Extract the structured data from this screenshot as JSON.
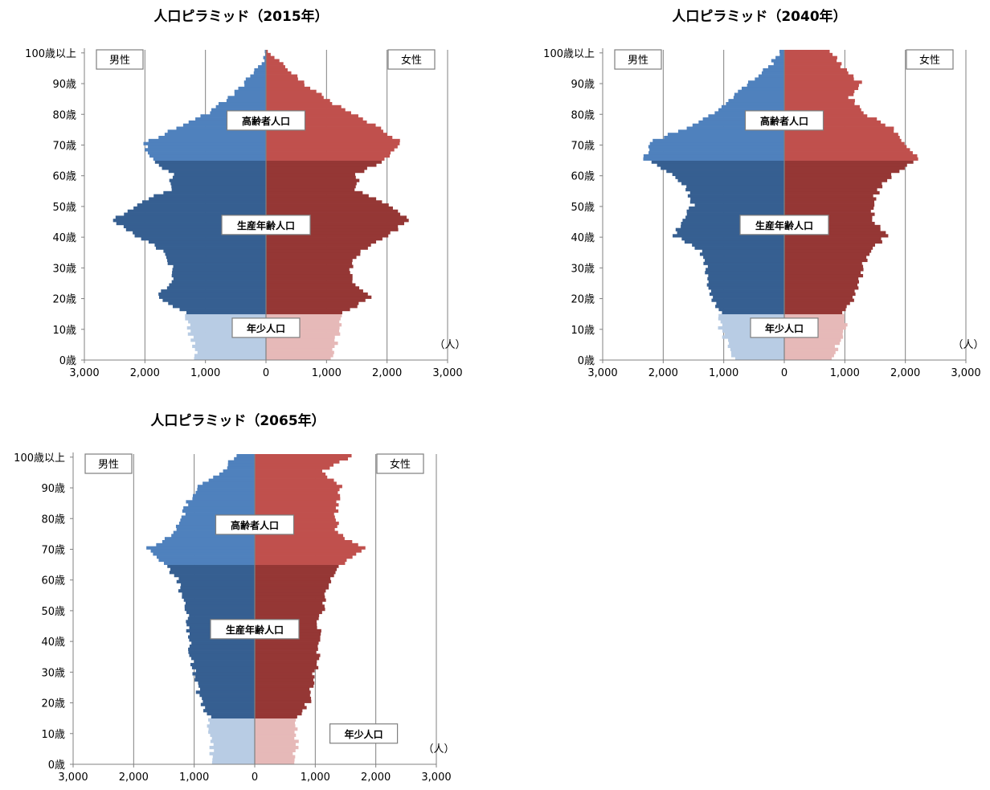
{
  "colors": {
    "male_young": "#b8cce4",
    "male_work": "#365f91",
    "male_old": "#4f81bd",
    "female_young": "#e6b9b8",
    "female_work": "#953735",
    "female_old": "#c0504d",
    "grid": "#808080",
    "axis": "#808080"
  },
  "chart_data": [
    {
      "type": "population-pyramid",
      "title": "人口ピラミッド（2015年）",
      "unit": "（人）",
      "x_ticks": [
        "3,000",
        "2,000",
        "1,000",
        "0",
        "1,000",
        "2,000",
        "3,000"
      ],
      "xlim": [
        -3000,
        3000
      ],
      "y_ticks": [
        "0歳",
        "10歳",
        "20歳",
        "30歳",
        "40歳",
        "50歳",
        "60歳",
        "70歳",
        "80歳",
        "90歳",
        "100歳以上"
      ],
      "legend": {
        "male": "男性",
        "female": "女性"
      },
      "group_labels": {
        "young": "年少人口",
        "working": "生産年齢人口",
        "elderly": "高齢者人口"
      },
      "group_label_positions": {
        "young": "center",
        "working": "center",
        "elderly": "center"
      },
      "ages": [
        "0-4",
        "5-9",
        "10-14",
        "15-19",
        "20-24",
        "25-29",
        "30-34",
        "35-39",
        "40-44",
        "45-49",
        "50-54",
        "55-59",
        "60-64",
        "65-69",
        "70-74",
        "75-79",
        "80-84",
        "85-89",
        "90-94",
        "95-99",
        "100+"
      ],
      "male": [
        1150,
        1200,
        1280,
        1350,
        1800,
        1550,
        1550,
        1700,
        2150,
        2550,
        2150,
        1600,
        1550,
        1900,
        2000,
        1500,
        950,
        600,
        350,
        100,
        20
      ],
      "female": [
        1100,
        1150,
        1220,
        1300,
        1750,
        1450,
        1400,
        1550,
        2000,
        2350,
        2050,
        1500,
        1500,
        2000,
        2250,
        1900,
        1400,
        950,
        600,
        300,
        30
      ]
    },
    {
      "type": "population-pyramid",
      "title": "人口ピラミッド（2040年）",
      "unit": "（人）",
      "x_ticks": [
        "3,000",
        "2,000",
        "1,000",
        "0",
        "1,000",
        "2,000",
        "3,000"
      ],
      "xlim": [
        -3000,
        3000
      ],
      "y_ticks": [
        "0歳",
        "10歳",
        "20歳",
        "30歳",
        "40歳",
        "50歳",
        "60歳",
        "70歳",
        "80歳",
        "90歳",
        "100歳以上"
      ],
      "legend": {
        "male": "男性",
        "female": "女性"
      },
      "group_labels": {
        "young": "年少人口",
        "working": "生産年齢人口",
        "elderly": "高齢者人口"
      },
      "group_label_positions": {
        "young": "center",
        "working": "center",
        "elderly": "center"
      },
      "ages": [
        "0-4",
        "5-9",
        "10-14",
        "15-19",
        "20-24",
        "25-29",
        "30-34",
        "35-39",
        "40-44",
        "45-49",
        "50-54",
        "55-59",
        "60-64",
        "65-69",
        "70-74",
        "75-79",
        "80-84",
        "85-89",
        "90-94",
        "95-99",
        "100+"
      ],
      "male": [
        850,
        950,
        1050,
        1050,
        1200,
        1250,
        1300,
        1400,
        1800,
        1700,
        1500,
        1600,
        1850,
        2300,
        2250,
        1650,
        1150,
        850,
        600,
        250,
        80
      ],
      "female": [
        800,
        900,
        1000,
        1000,
        1150,
        1250,
        1300,
        1400,
        1700,
        1450,
        1450,
        1550,
        1800,
        2200,
        2000,
        1800,
        1300,
        1100,
        1250,
        950,
        750
      ]
    },
    {
      "type": "population-pyramid",
      "title": "人口ピラミッド（2065年）",
      "unit": "（人）",
      "x_ticks": [
        "3,000",
        "2,000",
        "1,000",
        "0",
        "1,000",
        "2,000",
        "3,000"
      ],
      "xlim": [
        -3000,
        3000
      ],
      "y_ticks": [
        "0歳",
        "10歳",
        "20歳",
        "30歳",
        "40歳",
        "50歳",
        "60歳",
        "70歳",
        "80歳",
        "90歳",
        "100歳以上"
      ],
      "legend": {
        "male": "男性",
        "female": "女性"
      },
      "group_labels": {
        "young": "年少人口",
        "working": "生産年齢人口",
        "elderly": "高齢者人口"
      },
      "group_label_positions": {
        "young": "right",
        "working": "center",
        "elderly": "center"
      },
      "ages": [
        "0-4",
        "5-9",
        "10-14",
        "15-19",
        "20-24",
        "25-29",
        "30-34",
        "35-39",
        "40-44",
        "45-49",
        "50-54",
        "55-59",
        "60-64",
        "65-69",
        "70-74",
        "75-79",
        "80-84",
        "85-89",
        "90-94",
        "95-99",
        "100+"
      ],
      "male": [
        700,
        720,
        740,
        750,
        900,
        950,
        1000,
        1050,
        1080,
        1100,
        1150,
        1200,
        1300,
        1500,
        1750,
        1300,
        1200,
        1100,
        900,
        550,
        300
      ],
      "female": [
        650,
        680,
        700,
        700,
        900,
        950,
        1000,
        1050,
        1080,
        1050,
        1120,
        1180,
        1250,
        1450,
        1800,
        1350,
        1350,
        1350,
        1450,
        1100,
        1600
      ]
    }
  ]
}
